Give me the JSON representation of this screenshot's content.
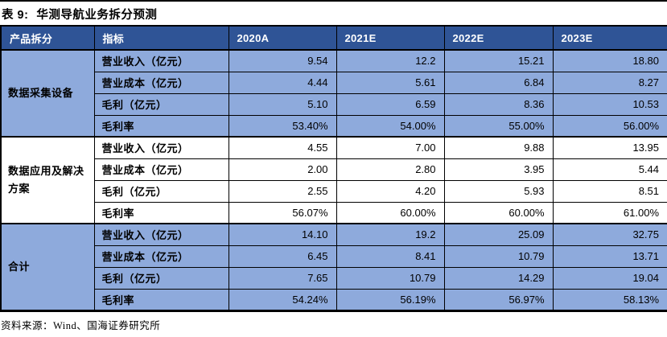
{
  "title": {
    "label": "表 9:",
    "text": "华测导航业务拆分预测"
  },
  "footer": {
    "source": "资料来源：Wind、国海证券研究所"
  },
  "colors": {
    "header_bg": "#2F5496",
    "shaded_row_bg": "#8EAADC",
    "border": "#000000",
    "header_text": "#FFFFFF"
  },
  "table": {
    "columns": [
      "产品拆分",
      "指标",
      "2020A",
      "2021E",
      "2022E",
      "2023E"
    ],
    "groups": [
      {
        "name": "数据采集设备",
        "shaded": true,
        "rows": [
          {
            "metric": "营业收入（亿元）",
            "values": [
              "9.54",
              "12.2",
              "15.21",
              "18.80"
            ]
          },
          {
            "metric": "营业成本（亿元）",
            "values": [
              "4.44",
              "5.61",
              "6.84",
              "8.27"
            ]
          },
          {
            "metric": "毛利（亿元）",
            "values": [
              "5.10",
              "6.59",
              "8.36",
              "10.53"
            ]
          },
          {
            "metric": "毛利率",
            "values": [
              "53.40%",
              "54.00%",
              "55.00%",
              "56.00%"
            ]
          }
        ]
      },
      {
        "name": "数据应用及解决方案",
        "shaded": false,
        "rows": [
          {
            "metric": "营业收入（亿元）",
            "values": [
              "4.55",
              "7.00",
              "9.88",
              "13.95"
            ]
          },
          {
            "metric": "营业成本（亿元）",
            "values": [
              "2.00",
              "2.80",
              "3.95",
              "5.44"
            ]
          },
          {
            "metric": "毛利（亿元）",
            "values": [
              "2.55",
              "4.20",
              "5.93",
              "8.51"
            ]
          },
          {
            "metric": "毛利率",
            "values": [
              "56.07%",
              "60.00%",
              "60.00%",
              "61.00%"
            ]
          }
        ]
      },
      {
        "name": "合计",
        "shaded": true,
        "rows": [
          {
            "metric": "营业收入（亿元）",
            "values": [
              "14.10",
              "19.2",
              "25.09",
              "32.75"
            ]
          },
          {
            "metric": "营业成本（亿元）",
            "values": [
              "6.45",
              "8.41",
              "10.79",
              "13.71"
            ]
          },
          {
            "metric": "毛利（亿元）",
            "values": [
              "7.65",
              "10.79",
              "14.29",
              "19.04"
            ]
          },
          {
            "metric": "毛利率",
            "values": [
              "54.24%",
              "56.19%",
              "56.97%",
              "58.13%"
            ]
          }
        ]
      }
    ]
  }
}
